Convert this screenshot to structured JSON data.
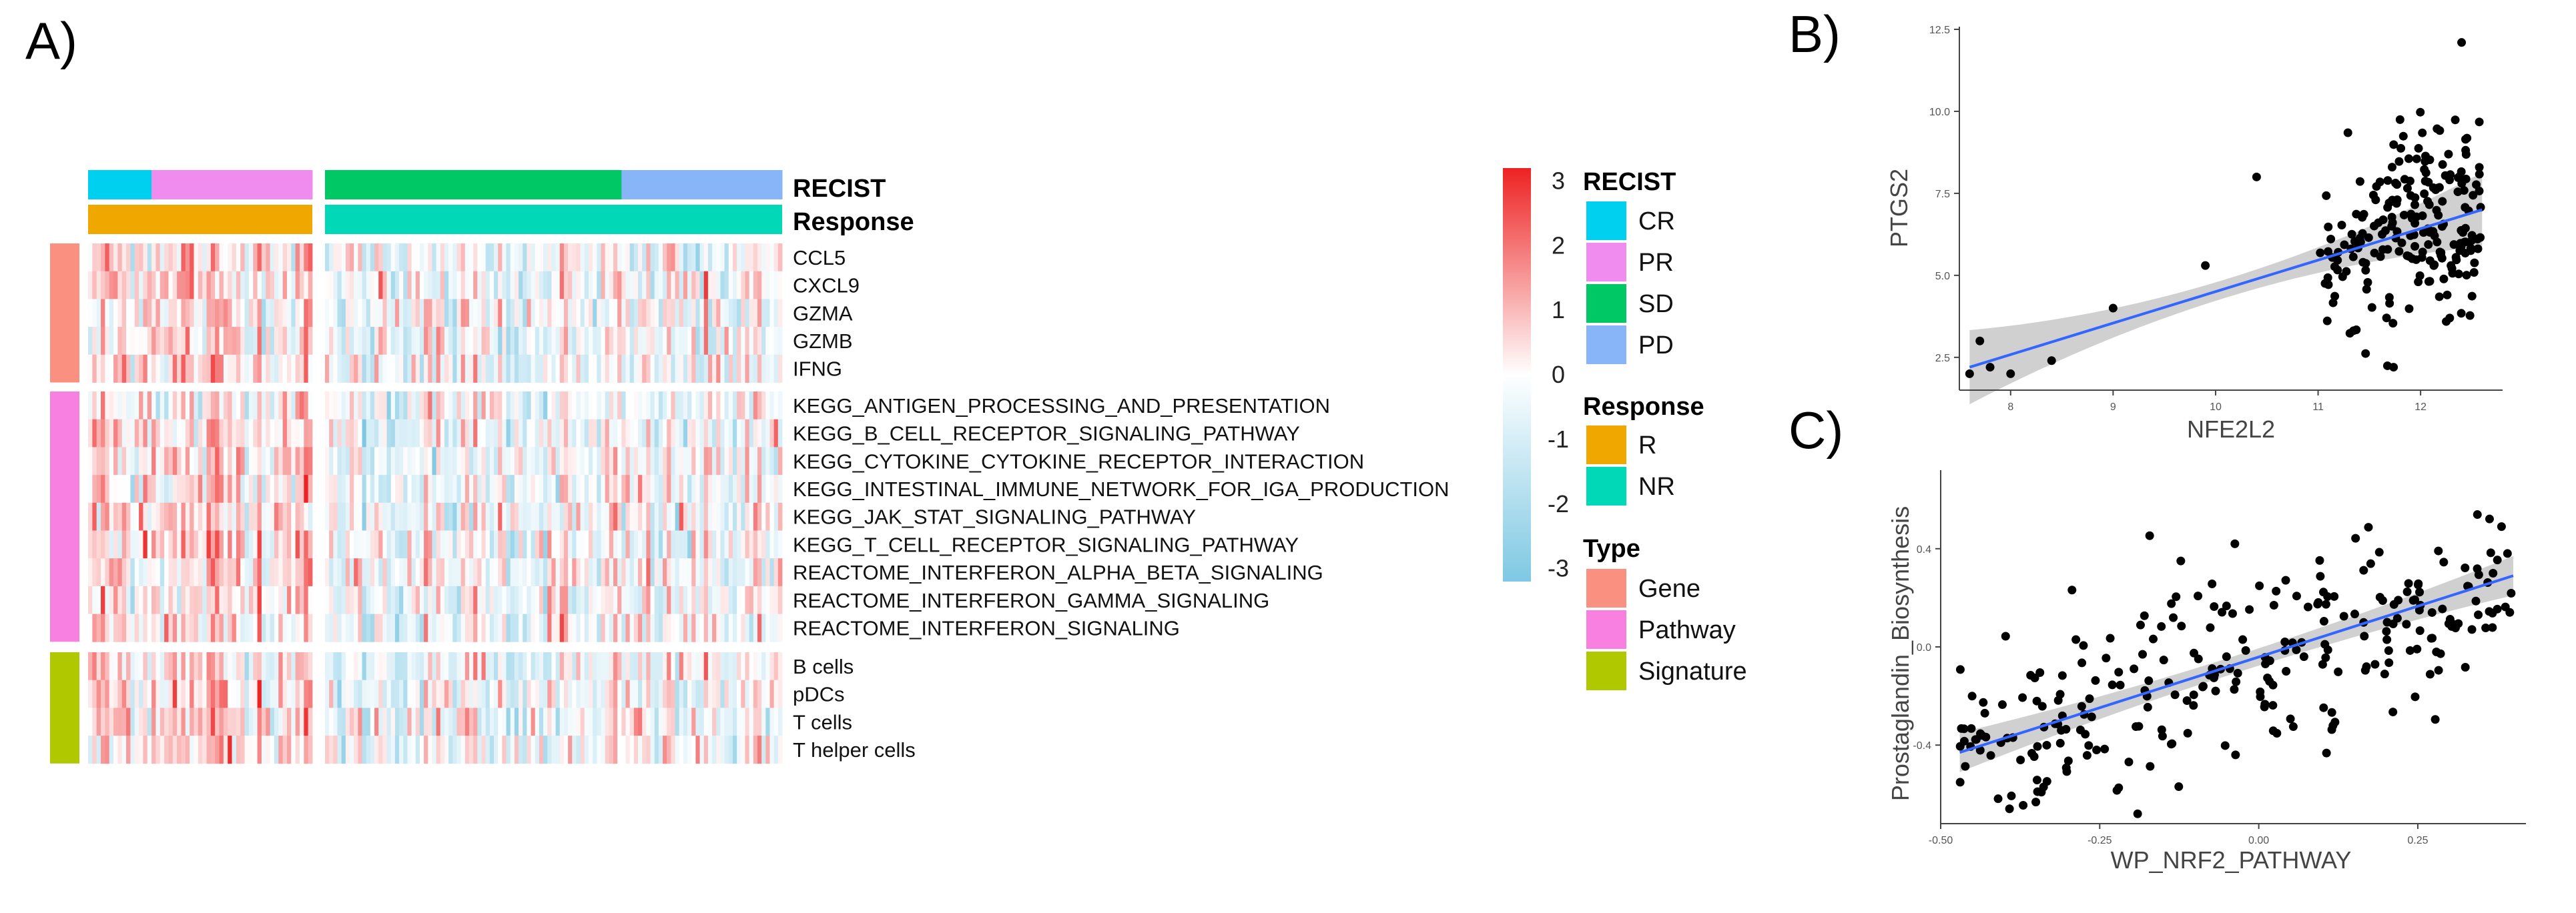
{
  "panels": {
    "a": "A)",
    "b": "B)",
    "c": "C)"
  },
  "heatmap": {
    "recist_label": "RECIST",
    "response_label": "Response",
    "recist_groups": [
      {
        "name": "CR",
        "n": 15,
        "color": "#00D0F0"
      },
      {
        "name": "PR",
        "n": 38,
        "color": "#F08CF0"
      },
      {
        "name": "SD",
        "n": 72,
        "color": "#00C864"
      },
      {
        "name": "PD",
        "n": 39,
        "color": "#88B4F8"
      }
    ],
    "response_groups": [
      {
        "name": "R",
        "color": "#F0A800"
      },
      {
        "name": "NR",
        "color": "#00D8B8"
      }
    ],
    "type_groups": [
      {
        "name": "Gene",
        "color": "#FA9080",
        "rows": [
          "CCL5",
          "CXCL9",
          "GZMA",
          "GZMB",
          "IFNG"
        ]
      },
      {
        "name": "Pathway",
        "color": "#F880E0",
        "rows": [
          "KEGG_ANTIGEN_PROCESSING_AND_PRESENTATION",
          "KEGG_B_CELL_RECEPTOR_SIGNALING_PATHWAY",
          "KEGG_CYTOKINE_CYTOKINE_RECEPTOR_INTERACTION",
          "KEGG_INTESTINAL_IMMUNE_NETWORK_FOR_IGA_PRODUCTION",
          "KEGG_JAK_STAT_SIGNALING_PATHWAY",
          "KEGG_T_CELL_RECEPTOR_SIGNALING_PATHWAY",
          "REACTOME_INTERFERON_ALPHA_BETA_SIGNALING",
          "REACTOME_INTERFERON_GAMMA_SIGNALING",
          "REACTOME_INTERFERON_SIGNALING"
        ]
      },
      {
        "name": "Signature",
        "color": "#B0C800",
        "rows": [
          "B cells",
          "pDCs",
          "T cells",
          "T helper cells"
        ]
      }
    ],
    "colorbar": {
      "ticks": [
        3,
        2,
        1,
        0,
        -1,
        -2,
        -3
      ],
      "low": "#7EC8E3",
      "mid": "#FFFFFF",
      "high": "#EE2222"
    },
    "legend": {
      "recist_title": "RECIST",
      "response_title": "Response",
      "type_title": "Type"
    }
  },
  "scatter_b": {
    "xlabel": "NFE2L2",
    "ylabel": "PTGS2",
    "xlim": [
      7.5,
      12.8
    ],
    "ylim": [
      1.5,
      12.5
    ],
    "xticks": [
      8,
      9,
      10,
      11,
      12
    ],
    "yticks": [
      "2.5",
      "5.0",
      "7.5",
      "10.0",
      "12.5"
    ],
    "fit": {
      "x0": 7.6,
      "y0": 2.2,
      "x1": 12.6,
      "y1": 7.0
    },
    "outliers": [
      [
        7.6,
        2.0
      ],
      [
        7.7,
        3.0
      ],
      [
        7.8,
        2.2
      ],
      [
        8.0,
        2.0
      ],
      [
        8.4,
        2.4
      ],
      [
        9.0,
        4.0
      ],
      [
        9.9,
        5.3
      ],
      [
        10.4,
        8.0
      ]
    ],
    "cluster": {
      "n": 210,
      "xmin": 11.0,
      "xmax": 12.6,
      "ymin": 2.2,
      "ymax": 10.5,
      "top": [
        12.4,
        12.1
      ]
    },
    "point_color": "#000000",
    "line_color": "#3366FF",
    "band_color": "#C8C8C8"
  },
  "scatter_c": {
    "xlabel": "WP_NRF2_PATHWAY",
    "ylabel": "Prostaglandin_Biosynthesis",
    "xlim": [
      -0.5,
      0.42
    ],
    "ylim": [
      -0.72,
      0.72
    ],
    "xticks": [
      "-0.50",
      "-0.25",
      "0.00",
      "0.25"
    ],
    "yticks": [
      "0.4",
      "0.0",
      "-0.4"
    ],
    "fit": {
      "x0": -0.47,
      "y0": -0.43,
      "x1": 0.4,
      "y1": 0.29
    },
    "n_points": 270,
    "point_color": "#000000",
    "line_color": "#3366FF",
    "band_color": "#C8C8C8"
  }
}
